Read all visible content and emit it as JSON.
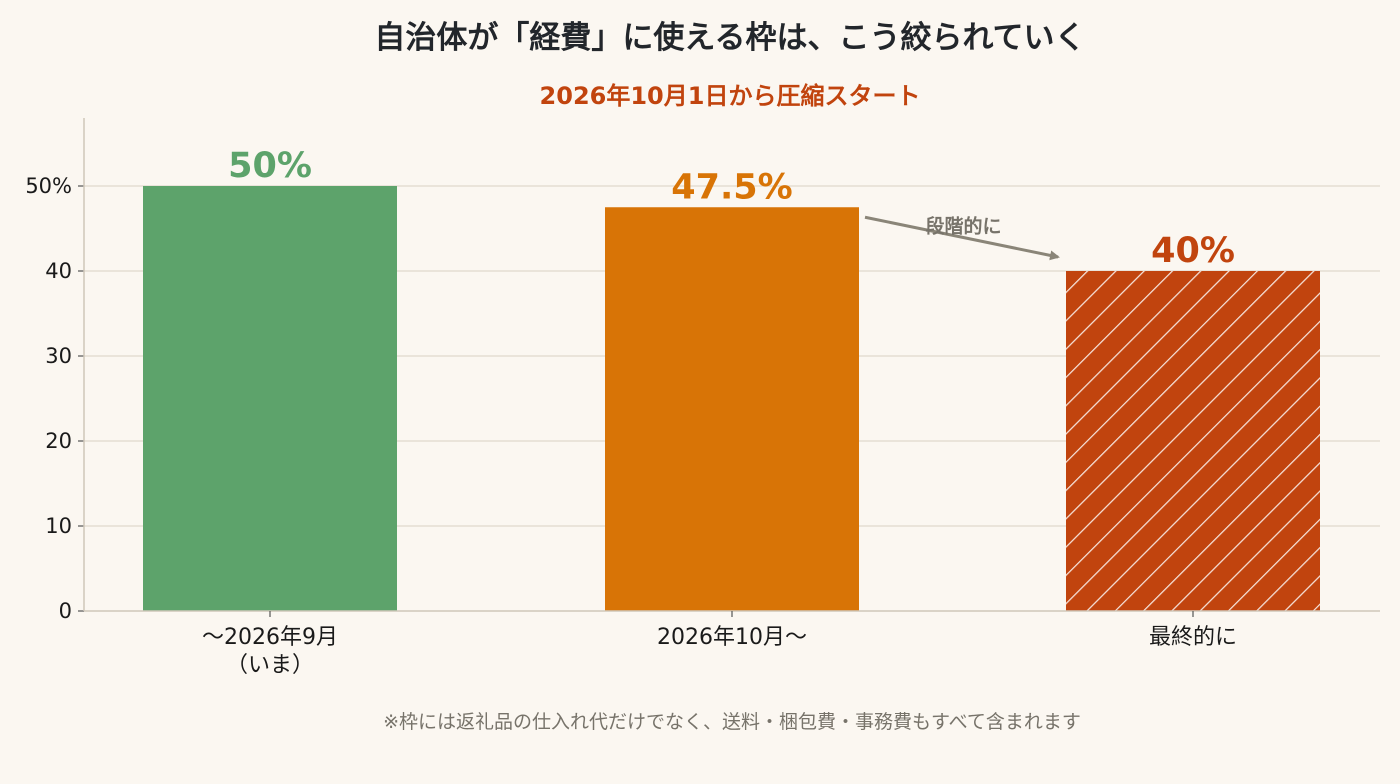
{
  "title": "自治体が「経費」に使える枠は、こう絞られていく",
  "subtitle": "2026年10月1日から圧縮スタート",
  "footnote": "※枠には返礼品の仕入れ代だけでなく、送料・梱包費・事務費もすべて含まれます",
  "colors": {
    "background": "#fbf7f1",
    "grid": "#e5ded2",
    "axis": "#cfc7b9",
    "title": "#22262b",
    "subtitle": "#c1440e",
    "annotation": "#8a8578",
    "footnote": "#77736a"
  },
  "chart_data": {
    "type": "bar",
    "title": "自治体が「経費」に使える枠は、こう絞られていく",
    "subtitle": "2026年10月1日から圧縮スタート",
    "categories": [
      [
        "〜2026年9月",
        "（いま）"
      ],
      [
        "2026年10月〜"
      ],
      [
        "最終的に"
      ]
    ],
    "values": [
      50,
      47.5,
      40
    ],
    "value_labels": [
      "50%",
      "47.5%",
      "40%"
    ],
    "bar_colors": [
      "#5da36b",
      "#d87406",
      "#c1440e"
    ],
    "bar_hatched": [
      false,
      false,
      true
    ],
    "ylim": [
      0,
      58
    ],
    "yticks": [
      0,
      10,
      20,
      30,
      40,
      50
    ],
    "ytick_labels": [
      "0",
      "10",
      "20",
      "30",
      "40",
      "50%"
    ],
    "grid": true,
    "xlabel": "",
    "ylabel": "",
    "annotation": {
      "text": "段階的に",
      "from_index": 1,
      "to_index": 2
    }
  }
}
